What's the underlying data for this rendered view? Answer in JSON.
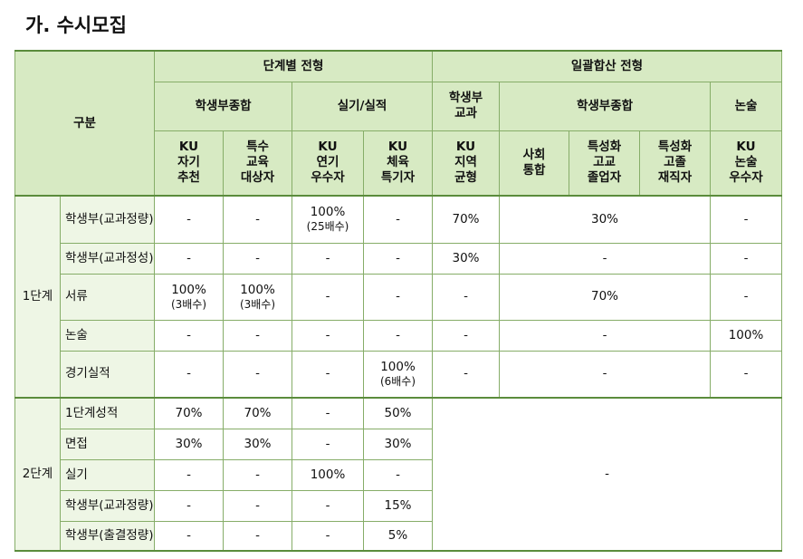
{
  "title": "가. 수시모집",
  "header": {
    "category": "구분",
    "groups": [
      "단계별 전형",
      "일괄합산 전형"
    ],
    "subgroups": [
      "학생부종합",
      "실기/실적",
      [
        "학생부",
        "교과"
      ],
      "학생부종합",
      "논술"
    ],
    "types": [
      [
        "KU",
        "자기",
        "추천"
      ],
      [
        "특수",
        "교육",
        "대상자"
      ],
      [
        "KU",
        "연기",
        "우수자"
      ],
      [
        "KU",
        "체육",
        "특기자"
      ],
      [
        "KU",
        "지역",
        "균형"
      ],
      [
        "사회",
        "통합"
      ],
      [
        "특성화",
        "고교",
        "졸업자"
      ],
      [
        "특성화",
        "고졸",
        "재직자"
      ],
      [
        "KU",
        "논술",
        "우수자"
      ]
    ]
  },
  "stages": [
    {
      "name": "1단계",
      "rows": [
        {
          "item": "학생부(교과정량)",
          "cells": [
            "-",
            "-",
            [
              "100%",
              "(25배수)"
            ],
            "-",
            "70%",
            "30%",
            "-"
          ]
        },
        {
          "item": "학생부(교과정성)",
          "cells": [
            "-",
            "-",
            "-",
            "-",
            "30%",
            "-",
            "-"
          ]
        },
        {
          "item": "서류",
          "cells": [
            [
              "100%",
              "(3배수)"
            ],
            [
              "100%",
              "(3배수)"
            ],
            "-",
            "-",
            "-",
            "70%",
            "-"
          ]
        },
        {
          "item": "논술",
          "cells": [
            "-",
            "-",
            "-",
            "-",
            "-",
            "-",
            "100%"
          ]
        },
        {
          "item": "경기실적",
          "cells": [
            "-",
            "-",
            "-",
            [
              "100%",
              "(6배수)"
            ],
            "-",
            "-",
            "-"
          ]
        }
      ]
    },
    {
      "name": "2단계",
      "rows": [
        {
          "item": "1단계성적",
          "cells": [
            "70%",
            "70%",
            "-",
            "50%",
            "-"
          ]
        },
        {
          "item": "면접",
          "cells": [
            "30%",
            "30%",
            "-",
            "30%"
          ]
        },
        {
          "item": "실기",
          "cells": [
            "-",
            "-",
            "100%",
            "-"
          ]
        },
        {
          "item": "학생부(교과정량)",
          "cells": [
            "-",
            "-",
            "-",
            "15%"
          ]
        },
        {
          "item": "학생부(출결정량)",
          "cells": [
            "-",
            "-",
            "-",
            "5%"
          ]
        }
      ]
    }
  ]
}
